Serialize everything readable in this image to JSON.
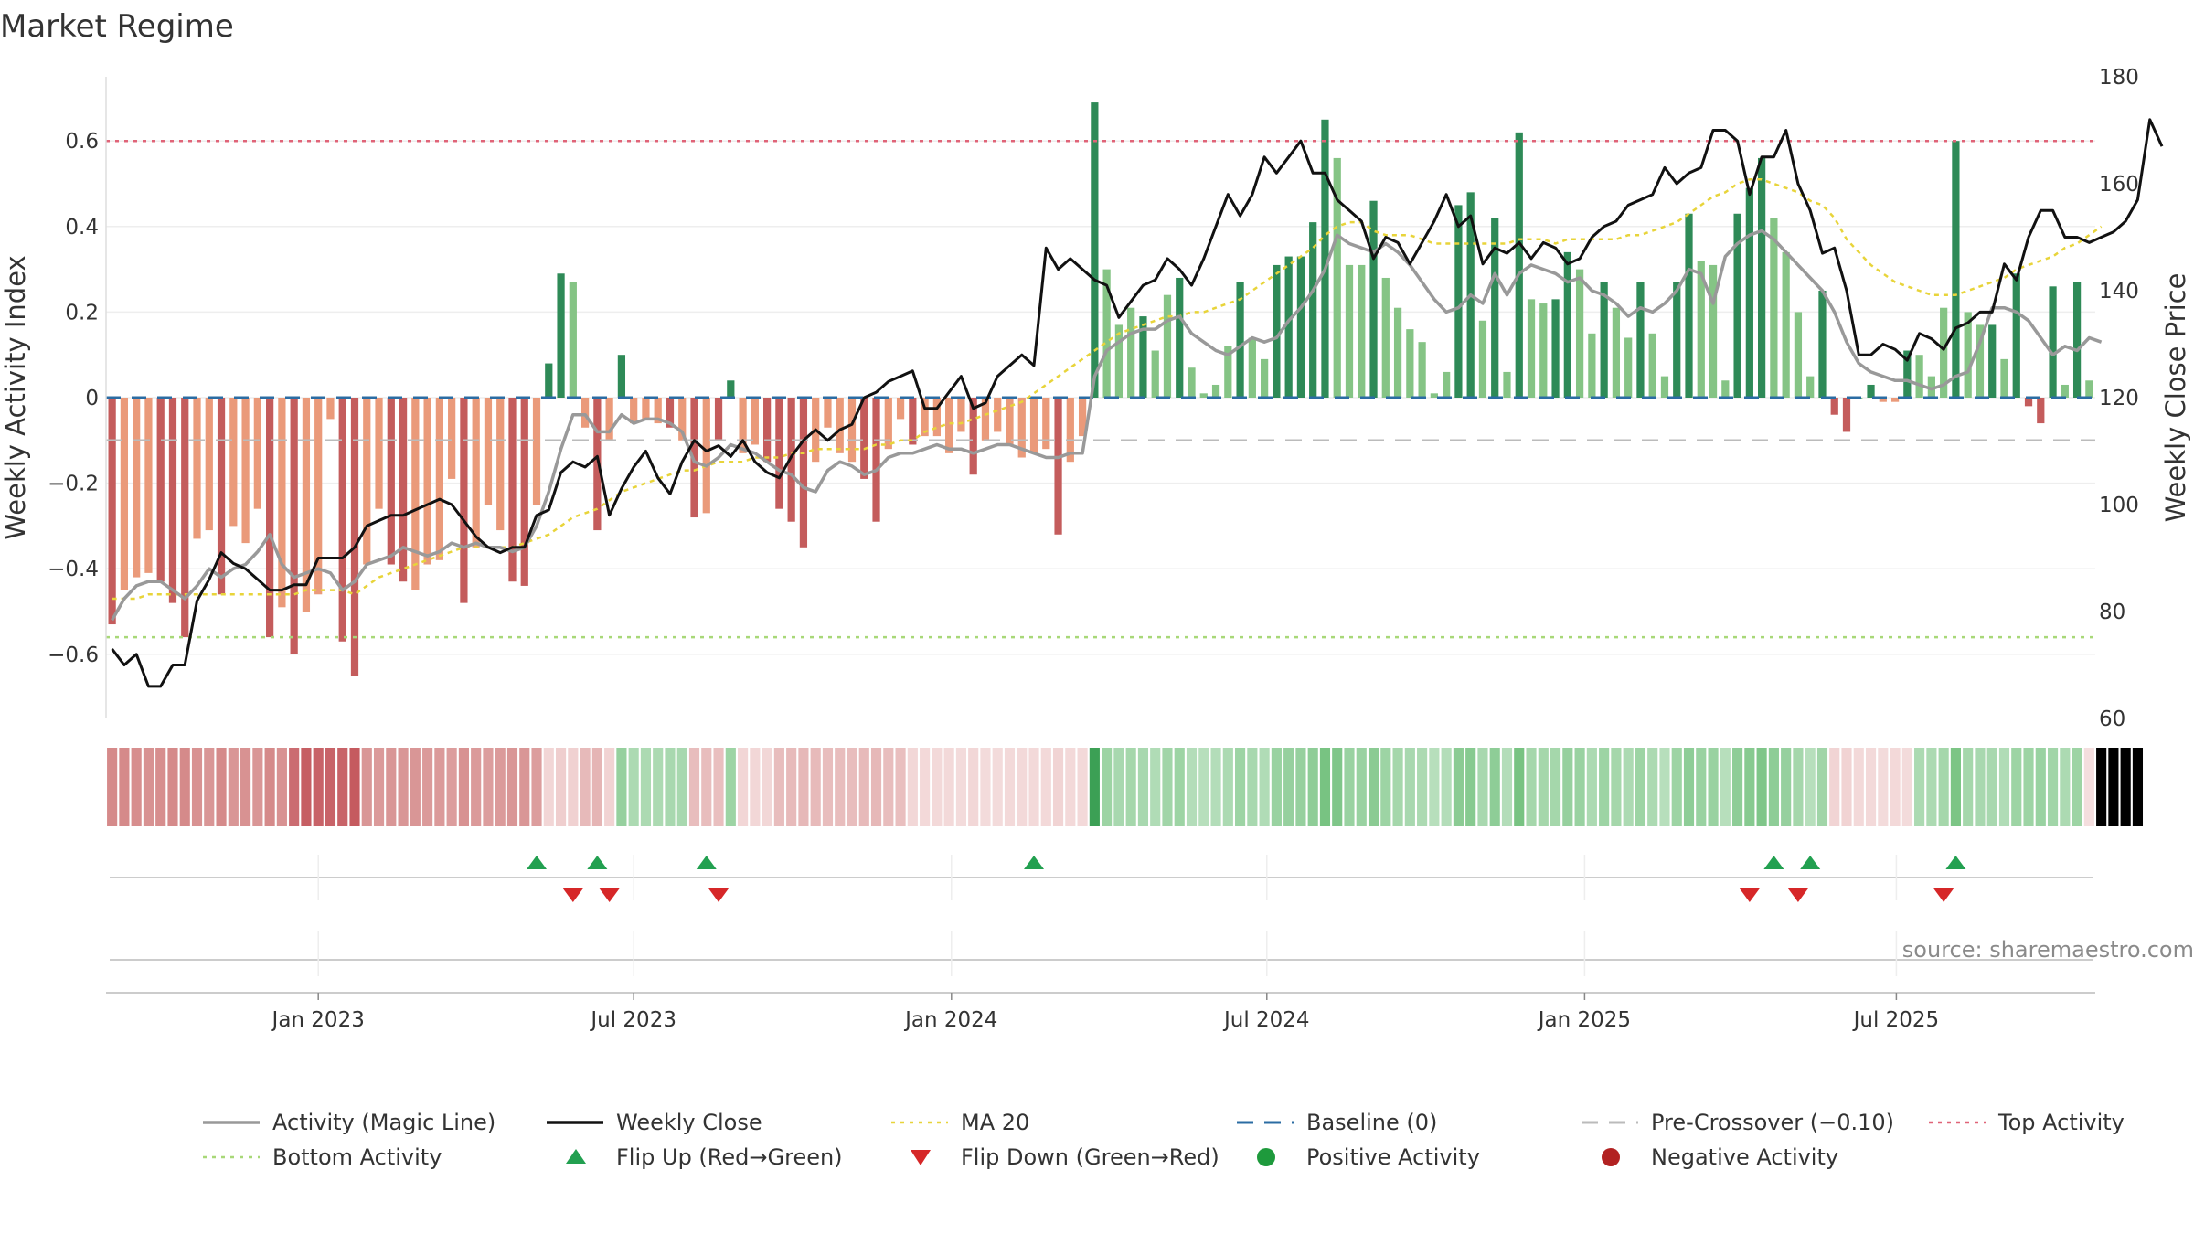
{
  "chart_data": {
    "type": "bar",
    "title": "Market Regime",
    "ylabel": "Weekly Activity Index",
    "y2label": "Weekly Close Price",
    "ylim": [
      -0.75,
      0.75
    ],
    "y2lim": [
      60,
      180
    ],
    "yticks": [
      -0.6,
      -0.4,
      -0.2,
      0,
      0.2,
      0.4,
      0.6
    ],
    "ytick_labels": [
      "−0.6",
      "−0.4",
      "−0.2",
      "0",
      "0.2",
      "0.4",
      "0.6"
    ],
    "y2ticks": [
      60,
      80,
      100,
      120,
      140,
      160,
      180
    ],
    "y2tick_labels": [
      "60",
      "80",
      "100",
      "120",
      "140",
      "160",
      "180"
    ],
    "xtick_labels": [
      "Jan 2023",
      "Jul 2023",
      "Jan 2024",
      "Jul 2024",
      "Jan 2025",
      "Jul 2025"
    ],
    "xtick_weeks": [
      17.5,
      43.5,
      69.7,
      95.7,
      121.9,
      147.6
    ],
    "activity": [
      -0.53,
      -0.45,
      -0.42,
      -0.41,
      -0.43,
      -0.48,
      -0.56,
      -0.33,
      -0.31,
      -0.46,
      -0.3,
      -0.34,
      -0.26,
      -0.56,
      -0.49,
      -0.6,
      -0.5,
      -0.46,
      -0.05,
      -0.57,
      -0.65,
      -0.39,
      -0.26,
      -0.39,
      -0.43,
      -0.45,
      -0.39,
      -0.38,
      -0.19,
      -0.48,
      -0.35,
      -0.25,
      -0.31,
      -0.43,
      -0.44,
      -0.25,
      0.08,
      0.29,
      0.27,
      -0.07,
      -0.31,
      -0.1,
      0.1,
      -0.06,
      -0.05,
      -0.06,
      -0.07,
      -0.1,
      -0.28,
      -0.27,
      -0.1,
      0.04,
      -0.13,
      -0.11,
      -0.15,
      -0.26,
      -0.29,
      -0.35,
      -0.15,
      -0.07,
      -0.13,
      -0.15,
      -0.19,
      -0.29,
      -0.12,
      -0.05,
      -0.11,
      -0.09,
      -0.09,
      -0.13,
      -0.08,
      -0.18,
      -0.1,
      -0.08,
      -0.11,
      -0.14,
      -0.13,
      -0.12,
      -0.32,
      -0.15,
      -0.09,
      0.69,
      0.3,
      0.17,
      0.21,
      0.19,
      0.11,
      0.24,
      0.28,
      0.07,
      0.01,
      0.03,
      0.12,
      0.27,
      0.14,
      0.09,
      0.31,
      0.33,
      0.33,
      0.41,
      0.65,
      0.56,
      0.31,
      0.31,
      0.46,
      0.28,
      0.21,
      0.16,
      0.13,
      0.01,
      0.06,
      0.45,
      0.48,
      0.18,
      0.42,
      0.06,
      0.62,
      0.23,
      0.22,
      0.23,
      0.34,
      0.3,
      0.15,
      0.27,
      0.21,
      0.14,
      0.27,
      0.15,
      0.05,
      0.27,
      0.43,
      0.32,
      0.31,
      0.04,
      0.43,
      0.49,
      0.56,
      0.42,
      0.34,
      0.2,
      0.05,
      0.25,
      -0.04,
      -0.08,
      0.0,
      0.03,
      -0.01,
      -0.01,
      0.11,
      0.1,
      0.05,
      0.21,
      0.6,
      0.2,
      0.17,
      0.17,
      0.09,
      0.29,
      -0.02,
      -0.06,
      0.26,
      0.03,
      0.27,
      0.04
    ],
    "activity_shade": [
      1,
      0,
      0,
      0,
      1,
      1,
      1,
      0,
      0,
      1,
      0,
      0,
      0,
      1,
      0,
      1,
      0,
      0,
      0,
      1,
      1,
      0,
      0,
      1,
      1,
      0,
      0,
      0,
      0,
      1,
      0,
      0,
      0,
      1,
      1,
      0,
      1,
      1,
      0,
      0,
      1,
      0,
      1,
      0,
      0,
      0,
      1,
      0,
      1,
      0,
      1,
      1,
      0,
      0,
      1,
      1,
      1,
      1,
      0,
      0,
      0,
      0,
      1,
      1,
      0,
      0,
      1,
      0,
      0,
      0,
      0,
      1,
      0,
      0,
      0,
      0,
      0,
      0,
      1,
      0,
      0,
      1,
      0,
      0,
      0,
      1,
      0,
      0,
      1,
      0,
      0,
      0,
      0,
      1,
      0,
      0,
      1,
      1,
      1,
      1,
      1,
      0,
      0,
      0,
      1,
      0,
      0,
      0,
      0,
      0,
      0,
      1,
      1,
      0,
      1,
      0,
      1,
      0,
      0,
      1,
      1,
      0,
      0,
      1,
      0,
      0,
      1,
      0,
      0,
      1,
      1,
      0,
      0,
      0,
      1,
      1,
      1,
      0,
      0,
      0,
      0,
      1,
      1,
      1,
      0,
      1,
      0,
      0,
      1,
      0,
      0,
      0,
      1,
      0,
      0,
      1,
      0,
      1,
      1,
      1,
      1,
      0,
      1,
      0
    ],
    "magic_line": [
      -0.52,
      -0.47,
      -0.44,
      -0.43,
      -0.43,
      -0.45,
      -0.47,
      -0.44,
      -0.4,
      -0.42,
      -0.4,
      -0.39,
      -0.36,
      -0.32,
      -0.39,
      -0.42,
      -0.41,
      -0.4,
      -0.41,
      -0.45,
      -0.43,
      -0.39,
      -0.38,
      -0.37,
      -0.35,
      -0.36,
      -0.37,
      -0.36,
      -0.34,
      -0.35,
      -0.34,
      -0.35,
      -0.35,
      -0.36,
      -0.35,
      -0.3,
      -0.22,
      -0.12,
      -0.04,
      -0.04,
      -0.08,
      -0.08,
      -0.04,
      -0.06,
      -0.05,
      -0.05,
      -0.06,
      -0.08,
      -0.15,
      -0.16,
      -0.14,
      -0.11,
      -0.12,
      -0.13,
      -0.15,
      -0.17,
      -0.18,
      -0.21,
      -0.22,
      -0.17,
      -0.15,
      -0.16,
      -0.18,
      -0.17,
      -0.14,
      -0.13,
      -0.13,
      -0.12,
      -0.11,
      -0.12,
      -0.12,
      -0.13,
      -0.12,
      -0.11,
      -0.11,
      -0.12,
      -0.13,
      -0.14,
      -0.14,
      -0.13,
      -0.13,
      0.05,
      0.11,
      0.13,
      0.15,
      0.16,
      0.16,
      0.18,
      0.19,
      0.15,
      0.13,
      0.11,
      0.1,
      0.12,
      0.14,
      0.13,
      0.14,
      0.18,
      0.21,
      0.25,
      0.3,
      0.38,
      0.36,
      0.35,
      0.34,
      0.36,
      0.34,
      0.31,
      0.27,
      0.23,
      0.2,
      0.21,
      0.24,
      0.22,
      0.29,
      0.24,
      0.29,
      0.31,
      0.3,
      0.29,
      0.27,
      0.28,
      0.25,
      0.24,
      0.22,
      0.19,
      0.21,
      0.2,
      0.22,
      0.25,
      0.3,
      0.29,
      0.22,
      0.33,
      0.36,
      0.38,
      0.39,
      0.37,
      0.34,
      0.31,
      0.28,
      0.25,
      0.2,
      0.13,
      0.08,
      0.06,
      0.05,
      0.04,
      0.04,
      0.03,
      0.02,
      0.03,
      0.05,
      0.06,
      0.13,
      0.21,
      0.21,
      0.2,
      0.18,
      0.14,
      0.1,
      0.12,
      0.11,
      0.14,
      0.13
    ],
    "weekly_close": [
      73,
      70,
      72,
      66,
      66,
      70,
      70,
      82,
      86,
      91,
      89,
      88,
      86,
      84,
      84,
      85,
      85,
      90,
      90,
      90,
      92,
      96,
      97,
      98,
      98,
      99,
      100,
      101,
      100,
      97,
      94,
      92,
      91,
      92,
      92,
      98,
      99,
      106,
      108,
      107,
      109,
      98,
      103,
      107,
      110,
      105,
      102,
      108,
      112,
      110,
      111,
      109,
      112,
      108,
      106,
      105,
      109,
      112,
      114,
      112,
      114,
      115,
      120,
      121,
      123,
      124,
      125,
      118,
      118,
      121,
      124,
      118,
      119,
      124,
      126,
      128,
      126,
      148,
      144,
      146,
      144,
      142,
      141,
      135,
      138,
      141,
      142,
      146,
      144,
      141,
      146,
      152,
      158,
      154,
      158,
      165,
      162,
      165,
      168,
      162,
      162,
      157,
      155,
      153,
      146,
      150,
      149,
      145,
      149,
      153,
      158,
      152,
      154,
      145,
      148,
      147,
      149,
      146,
      149,
      148,
      145,
      146,
      150,
      152,
      153,
      156,
      157,
      158,
      163,
      160,
      162,
      163,
      170,
      170,
      168,
      158,
      165,
      165,
      170,
      160,
      155,
      147,
      148,
      140,
      128,
      128,
      130,
      129,
      127,
      132,
      131,
      129,
      133,
      134,
      136,
      136,
      145,
      142,
      150,
      155,
      155,
      150,
      150,
      149,
      150,
      151,
      153,
      157,
      172,
      167
    ],
    "ma20": [
      -0.47,
      -0.47,
      -0.47,
      -0.46,
      -0.46,
      -0.46,
      -0.46,
      -0.46,
      -0.46,
      -0.46,
      -0.46,
      -0.46,
      -0.46,
      -0.46,
      -0.46,
      -0.46,
      -0.45,
      -0.45,
      -0.45,
      -0.45,
      -0.46,
      -0.44,
      -0.42,
      -0.41,
      -0.4,
      -0.39,
      -0.38,
      -0.37,
      -0.36,
      -0.35,
      -0.35,
      -0.35,
      -0.35,
      -0.35,
      -0.34,
      -0.33,
      -0.32,
      -0.3,
      -0.28,
      -0.27,
      -0.26,
      -0.24,
      -0.22,
      -0.21,
      -0.2,
      -0.19,
      -0.18,
      -0.17,
      -0.17,
      -0.16,
      -0.15,
      -0.15,
      -0.15,
      -0.14,
      -0.14,
      -0.14,
      -0.13,
      -0.13,
      -0.12,
      -0.12,
      -0.12,
      -0.12,
      -0.12,
      -0.11,
      -0.11,
      -0.1,
      -0.1,
      -0.08,
      -0.07,
      -0.06,
      -0.06,
      -0.05,
      -0.04,
      -0.03,
      -0.02,
      -0.01,
      0.01,
      0.03,
      0.05,
      0.07,
      0.09,
      0.11,
      0.13,
      0.15,
      0.16,
      0.17,
      0.18,
      0.19,
      0.19,
      0.2,
      0.2,
      0.21,
      0.22,
      0.23,
      0.25,
      0.27,
      0.29,
      0.31,
      0.33,
      0.35,
      0.38,
      0.4,
      0.41,
      0.41,
      0.39,
      0.38,
      0.38,
      0.38,
      0.37,
      0.36,
      0.36,
      0.36,
      0.36,
      0.36,
      0.36,
      0.36,
      0.37,
      0.37,
      0.37,
      0.36,
      0.37,
      0.37,
      0.37,
      0.37,
      0.37,
      0.38,
      0.38,
      0.39,
      0.4,
      0.41,
      0.43,
      0.45,
      0.47,
      0.48,
      0.5,
      0.51,
      0.51,
      0.5,
      0.49,
      0.48,
      0.46,
      0.45,
      0.42,
      0.37,
      0.34,
      0.31,
      0.29,
      0.27,
      0.26,
      0.25,
      0.24,
      0.24,
      0.24,
      0.25,
      0.26,
      0.27,
      0.28,
      0.3,
      0.31,
      0.32,
      0.33,
      0.35,
      0.36,
      0.38,
      0.4
    ],
    "regime_strip": [
      4,
      4,
      4,
      4,
      4,
      4,
      4,
      4,
      4,
      4,
      4,
      4,
      4,
      4,
      4,
      5,
      5,
      5,
      5,
      5,
      5,
      4,
      4,
      4,
      4,
      4,
      4,
      4,
      4,
      4,
      4,
      4,
      4,
      4,
      4,
      4,
      2,
      2,
      2,
      3,
      3,
      2,
      1,
      1,
      1,
      1,
      1,
      1,
      3,
      3,
      3,
      1,
      2,
      2,
      2,
      3,
      3,
      3,
      3,
      3,
      3,
      3,
      3,
      3,
      3,
      3,
      2,
      2,
      2,
      2,
      2,
      2,
      2,
      2,
      2,
      2,
      2,
      2,
      2,
      2,
      2,
      0,
      1,
      1,
      1,
      1,
      1,
      1,
      1,
      1,
      1,
      1,
      1,
      1,
      1,
      1,
      1,
      1,
      1,
      1,
      1,
      1,
      1,
      1,
      1,
      1,
      1,
      1,
      1,
      1,
      1,
      1,
      1,
      1,
      1,
      1,
      1,
      1,
      1,
      1,
      1,
      1,
      1,
      1,
      1,
      1,
      1,
      1,
      1,
      1,
      1,
      1,
      1,
      1,
      1,
      1,
      1,
      1,
      1,
      1,
      1,
      1,
      2,
      2,
      2,
      2,
      2,
      2,
      2,
      1,
      1,
      1,
      1,
      1,
      1,
      1,
      1,
      1,
      1,
      1,
      1,
      1,
      1,
      2,
      2,
      1,
      1,
      1
    ],
    "regime_intensity": [
      0.7,
      0.7,
      0.65,
      0.6,
      0.65,
      0.7,
      0.7,
      0.6,
      0.55,
      0.7,
      0.55,
      0.6,
      0.55,
      0.7,
      0.6,
      0.75,
      0.9,
      0.85,
      0.85,
      0.85,
      0.95,
      0.55,
      0.5,
      0.55,
      0.55,
      0.55,
      0.5,
      0.5,
      0.45,
      0.6,
      0.5,
      0.45,
      0.5,
      0.55,
      0.55,
      0.45,
      0.45,
      0.7,
      0.6,
      0.5,
      0.6,
      0.55,
      0.6,
      0.3,
      0.3,
      0.3,
      0.35,
      0.35,
      0.45,
      0.45,
      0.4,
      0.5,
      0.45,
      0.4,
      0.4,
      0.45,
      0.5,
      0.55,
      0.5,
      0.45,
      0.45,
      0.45,
      0.5,
      0.55,
      0.45,
      0.4,
      0.4,
      0.35,
      0.35,
      0.35,
      0.3,
      0.4,
      0.3,
      0.3,
      0.35,
      0.35,
      0.35,
      0.35,
      0.5,
      0.35,
      0.35,
      1.0,
      0.5,
      0.35,
      0.4,
      0.35,
      0.25,
      0.45,
      0.5,
      0.2,
      0.15,
      0.2,
      0.3,
      0.5,
      0.35,
      0.25,
      0.55,
      0.6,
      0.6,
      0.7,
      1.0,
      0.9,
      0.55,
      0.55,
      0.75,
      0.5,
      0.4,
      0.35,
      0.3,
      0.15,
      0.2,
      0.75,
      0.8,
      0.35,
      0.7,
      0.2,
      1.0,
      0.4,
      0.4,
      0.4,
      0.6,
      0.55,
      0.3,
      0.5,
      0.4,
      0.3,
      0.5,
      0.3,
      0.15,
      0.5,
      0.7,
      0.55,
      0.55,
      0.15,
      0.7,
      0.8,
      0.9,
      0.7,
      0.6,
      0.4,
      0.15,
      0.45,
      0.5,
      0.55,
      0.35,
      0.35,
      0.3,
      0.35,
      0.3,
      0.3,
      0.3,
      0.4,
      0.95,
      0.4,
      0.35,
      0.35,
      0.25,
      0.5,
      0.5,
      0.55,
      0.45,
      0.3,
      0.5,
      0.2
    ],
    "flip_up_weeks": [
      35.5,
      40.5,
      49.5,
      76.5,
      137.5,
      140.5,
      152.5
    ],
    "flip_down_weeks": [
      38.5,
      41.5,
      50.5,
      135.5,
      139.5,
      151.5
    ],
    "levels": {
      "top": 0.6,
      "bottom": -0.56,
      "pre_crossover": -0.1,
      "baseline": 0
    },
    "legend": [
      {
        "label": "Activity (Magic Line)",
        "kind": "line",
        "color": "#999999"
      },
      {
        "label": "Weekly Close",
        "kind": "line",
        "color": "#111111"
      },
      {
        "label": "MA 20",
        "kind": "dotted",
        "color": "#e8d43a"
      },
      {
        "label": "Baseline (0)",
        "kind": "dashed",
        "color": "#2b6ca3"
      },
      {
        "label": "Pre-Crossover (−0.10)",
        "kind": "dashed",
        "color": "#bbbbbb"
      },
      {
        "label": "Top Activity",
        "kind": "dotted",
        "color": "#e06478"
      },
      {
        "label": "Bottom Activity",
        "kind": "dotted",
        "color": "#a8d878"
      },
      {
        "label": "Flip Up (Red→Green)",
        "kind": "tri-up",
        "color": "#22a050"
      },
      {
        "label": "Flip Down (Green→Red)",
        "kind": "tri-down",
        "color": "#d62728"
      },
      {
        "label": "Positive Activity",
        "kind": "dot",
        "color": "#1e9a3c"
      },
      {
        "label": "Negative Activity",
        "kind": "dot",
        "color": "#b22222"
      }
    ],
    "legend_placement": "bottom",
    "grid": true,
    "colors": {
      "pos_dark": "#2e8a57",
      "pos_light": "#85c485",
      "neg_dark": "#c45c5c",
      "neg_light": "#ea9a7a",
      "magic": "#999999",
      "close": "#111111",
      "ma20": "#e8d43a",
      "baseline": "#2b6ca3",
      "pre": "#bbbbbb",
      "top": "#e06478",
      "bottom": "#a8d878",
      "flip_up": "#22a050",
      "flip_down": "#d62728"
    }
  },
  "source_text": "source: sharemaestro.com"
}
